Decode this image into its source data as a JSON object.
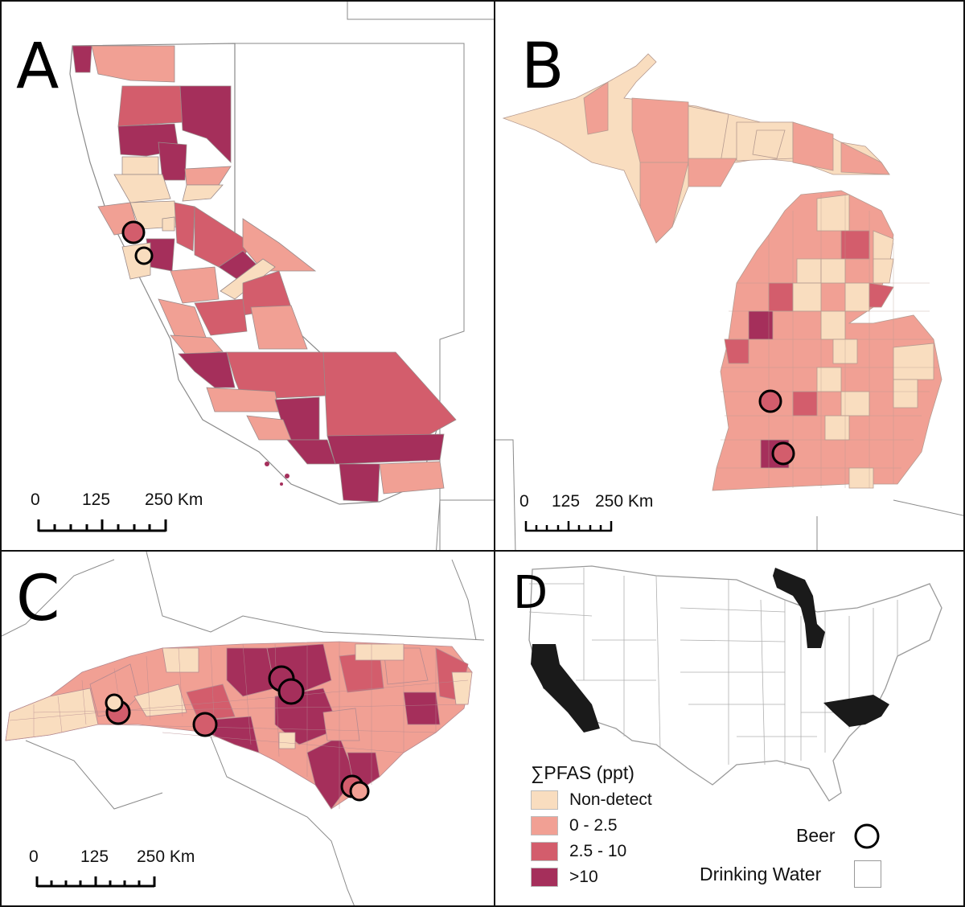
{
  "panels": [
    {
      "letter": "A"
    },
    {
      "letter": "B"
    },
    {
      "letter": "C"
    },
    {
      "letter": "D"
    }
  ],
  "scalebar": {
    "ticks": [
      "0",
      "125",
      "250 Km"
    ]
  },
  "legend": {
    "title": "∑PFAS (ppt)",
    "classes": [
      {
        "label": "Non-detect",
        "color": "#F9DDBF"
      },
      {
        "label": "0 - 2.5",
        "color": "#F1A094"
      },
      {
        "label": "2.5 - 10",
        "color": "#D35D6C"
      },
      {
        "label": ">10",
        "color": "#A52F5B"
      }
    ],
    "beer_label": "Beer",
    "water_label": "Drinking Water"
  },
  "colors": {
    "highlight_state": "#1a1a1a",
    "outline": "#999999",
    "border": "#111111"
  },
  "states_highlighted": [
    "California",
    "Michigan",
    "North Carolina"
  ]
}
